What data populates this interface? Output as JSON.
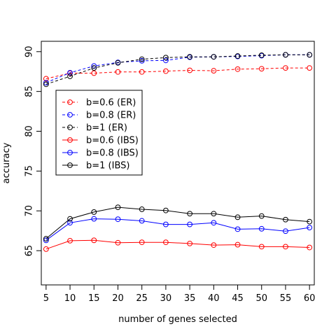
{
  "chart_data": {
    "type": "line",
    "title": "",
    "xlabel": "number of genes selected",
    "ylabel": "accuracy",
    "xlim": [
      4,
      61
    ],
    "ylim": [
      60.7,
      91.3
    ],
    "x": [
      5,
      10,
      15,
      20,
      25,
      30,
      35,
      40,
      45,
      50,
      55,
      60
    ],
    "x_ticks": [
      5,
      10,
      15,
      20,
      25,
      30,
      35,
      40,
      45,
      50,
      55,
      60
    ],
    "y_ticks": [
      65,
      70,
      75,
      80,
      85,
      90
    ],
    "legend_position": "upper-left",
    "grid": false,
    "series": [
      {
        "name": "b=0.6 (ER)",
        "color": "#ff0000",
        "dashed": true,
        "values": [
          86.6,
          87.3,
          87.3,
          87.45,
          87.45,
          87.55,
          87.65,
          87.6,
          87.8,
          87.85,
          87.95,
          87.95
        ]
      },
      {
        "name": "b=0.8 (ER)",
        "color": "#0000ff",
        "dashed": true,
        "values": [
          86.1,
          87.35,
          88.2,
          88.65,
          88.85,
          88.9,
          89.3,
          89.35,
          89.4,
          89.5,
          89.6,
          89.6
        ]
      },
      {
        "name": "b=1 (ER)",
        "color": "#000000",
        "dashed": true,
        "values": [
          85.9,
          86.9,
          87.95,
          88.6,
          89.05,
          89.25,
          89.35,
          89.35,
          89.45,
          89.55,
          89.6,
          89.6
        ]
      },
      {
        "name": "b=0.6 (IBS)",
        "color": "#ff0000",
        "dashed": false,
        "values": [
          65.2,
          66.25,
          66.3,
          66.0,
          66.05,
          66.05,
          65.9,
          65.7,
          65.75,
          65.5,
          65.5,
          65.4
        ]
      },
      {
        "name": "b=0.8 (IBS)",
        "color": "#0000ff",
        "dashed": false,
        "values": [
          66.3,
          68.5,
          69.0,
          68.95,
          68.75,
          68.3,
          68.3,
          68.5,
          67.7,
          67.75,
          67.45,
          67.9
        ]
      },
      {
        "name": "b=1 (IBS)",
        "color": "#000000",
        "dashed": false,
        "values": [
          66.5,
          69.0,
          69.85,
          70.45,
          70.2,
          70.05,
          69.65,
          69.65,
          69.2,
          69.35,
          68.9,
          68.65
        ]
      }
    ]
  }
}
